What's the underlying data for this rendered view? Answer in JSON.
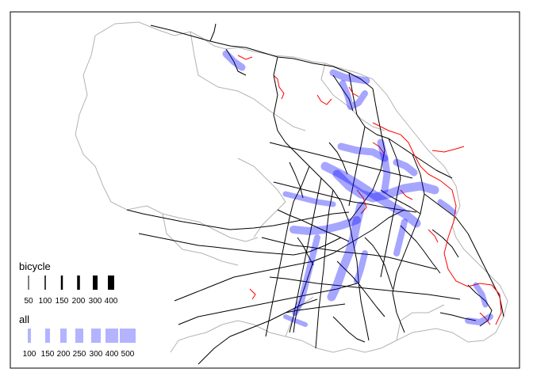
{
  "map": {
    "colors": {
      "frame": "#000000",
      "boundary": "#b3b3b3",
      "roads": "#000000",
      "cycle_paths": "#ff0000",
      "flows": "#0000ff",
      "legend_all": "#b3b3ff"
    }
  },
  "legend": {
    "bicycle": {
      "title": "bicycle",
      "labels": [
        "50",
        "100",
        "150",
        "200",
        "300",
        "400"
      ]
    },
    "all": {
      "title": "all",
      "labels": [
        "100",
        "150",
        "200",
        "250",
        "300",
        "400",
        "500"
      ]
    }
  }
}
